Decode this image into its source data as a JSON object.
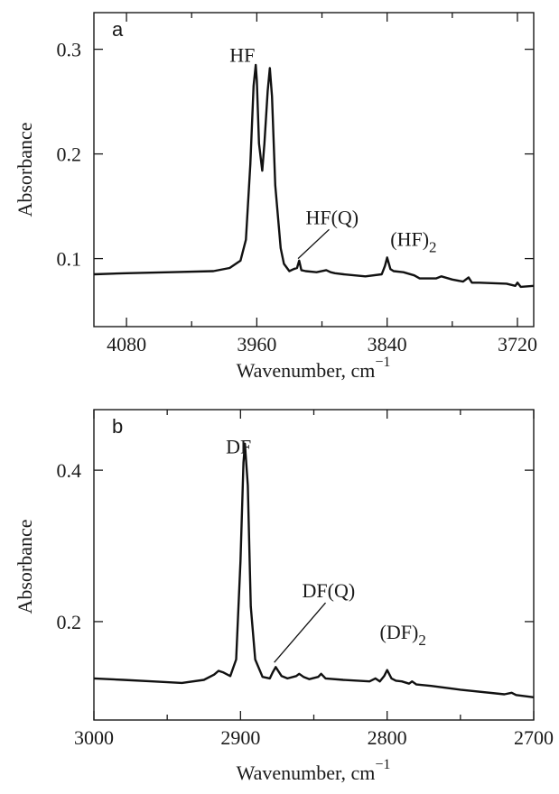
{
  "chart_data": [
    {
      "type": "line",
      "panel_label": "a",
      "xlabel": "Wavenumber, cm",
      "xlabel_sup": "−1",
      "ylabel": "Absorbance",
      "xlim": [
        4110,
        3705
      ],
      "ylim": [
        0.035,
        0.335
      ],
      "x_reversed": true,
      "xticks": [
        4080,
        3960,
        3840,
        3720
      ],
      "xticks_minor": [
        4020,
        3900,
        3780
      ],
      "yticks": [
        0.1,
        0.2,
        0.3
      ],
      "grid": false,
      "series": [
        {
          "x": [
            4110,
            4080,
            4040,
            4000,
            3985,
            3975,
            3970,
            3966,
            3963,
            3961,
            3960,
            3958,
            3955,
            3953,
            3950,
            3948,
            3946,
            3943,
            3938,
            3935,
            3930,
            3926,
            3923,
            3921,
            3919,
            3915,
            3905,
            3896,
            3892,
            3888,
            3880,
            3860,
            3845,
            3842,
            3840,
            3837,
            3834,
            3825,
            3815,
            3810,
            3795,
            3790,
            3780,
            3770,
            3765,
            3762,
            3755,
            3730,
            3722,
            3720,
            3717,
            3705
          ],
          "y": [
            0.085,
            0.086,
            0.087,
            0.088,
            0.091,
            0.098,
            0.118,
            0.19,
            0.265,
            0.285,
            0.27,
            0.21,
            0.184,
            0.21,
            0.26,
            0.282,
            0.255,
            0.17,
            0.11,
            0.095,
            0.088,
            0.09,
            0.091,
            0.098,
            0.089,
            0.088,
            0.087,
            0.089,
            0.087,
            0.086,
            0.085,
            0.083,
            0.085,
            0.093,
            0.101,
            0.09,
            0.088,
            0.087,
            0.084,
            0.081,
            0.081,
            0.083,
            0.08,
            0.078,
            0.082,
            0.077,
            0.077,
            0.076,
            0.074,
            0.077,
            0.073,
            0.074
          ]
        }
      ],
      "annotations": [
        {
          "label": "HF",
          "x": 3985,
          "y": 0.288
        },
        {
          "label": "HF(Q)",
          "x": 3915,
          "y": 0.133,
          "leader_to": [
            3922,
            0.1
          ]
        },
        {
          "label": "(HF)",
          "sub": "2",
          "x": 3837,
          "y": 0.112
        }
      ]
    },
    {
      "type": "line",
      "panel_label": "b",
      "xlabel": "Wavenumber, cm",
      "xlabel_sup": "−1",
      "ylabel": "Absorbance",
      "xlim": [
        3000,
        2700
      ],
      "ylim": [
        0.07,
        0.48
      ],
      "x_reversed": true,
      "xticks": [
        3000,
        2900,
        2800,
        2700
      ],
      "xticks_minor": [
        2950,
        2850,
        2750
      ],
      "yticks": [
        0.2,
        0.4
      ],
      "grid": false,
      "series": [
        {
          "x": [
            3000,
            2980,
            2960,
            2940,
            2925,
            2918,
            2915,
            2912,
            2907,
            2903,
            2900,
            2898,
            2897,
            2895,
            2893,
            2890,
            2885,
            2880,
            2878,
            2876,
            2872,
            2868,
            2862,
            2860,
            2857,
            2853,
            2847,
            2845,
            2842,
            2830,
            2812,
            2808,
            2805,
            2802,
            2800,
            2797,
            2794,
            2790,
            2785,
            2783,
            2780,
            2770,
            2750,
            2720,
            2715,
            2712,
            2700
          ],
          "y": [
            0.125,
            0.123,
            0.121,
            0.119,
            0.123,
            0.13,
            0.135,
            0.133,
            0.128,
            0.15,
            0.28,
            0.41,
            0.435,
            0.38,
            0.22,
            0.15,
            0.127,
            0.125,
            0.133,
            0.14,
            0.128,
            0.125,
            0.128,
            0.131,
            0.127,
            0.124,
            0.127,
            0.131,
            0.125,
            0.123,
            0.121,
            0.125,
            0.121,
            0.128,
            0.136,
            0.125,
            0.122,
            0.121,
            0.118,
            0.121,
            0.117,
            0.115,
            0.11,
            0.104,
            0.106,
            0.103,
            0.1
          ]
        }
      ],
      "annotations": [
        {
          "label": "DF",
          "x": 2910,
          "y": 0.422
        },
        {
          "label": "DF(Q)",
          "x": 2858,
          "y": 0.232,
          "leader_to": [
            2877,
            0.146
          ]
        },
        {
          "label": "(DF)",
          "sub": "2",
          "x": 2805,
          "y": 0.177
        }
      ]
    }
  ]
}
